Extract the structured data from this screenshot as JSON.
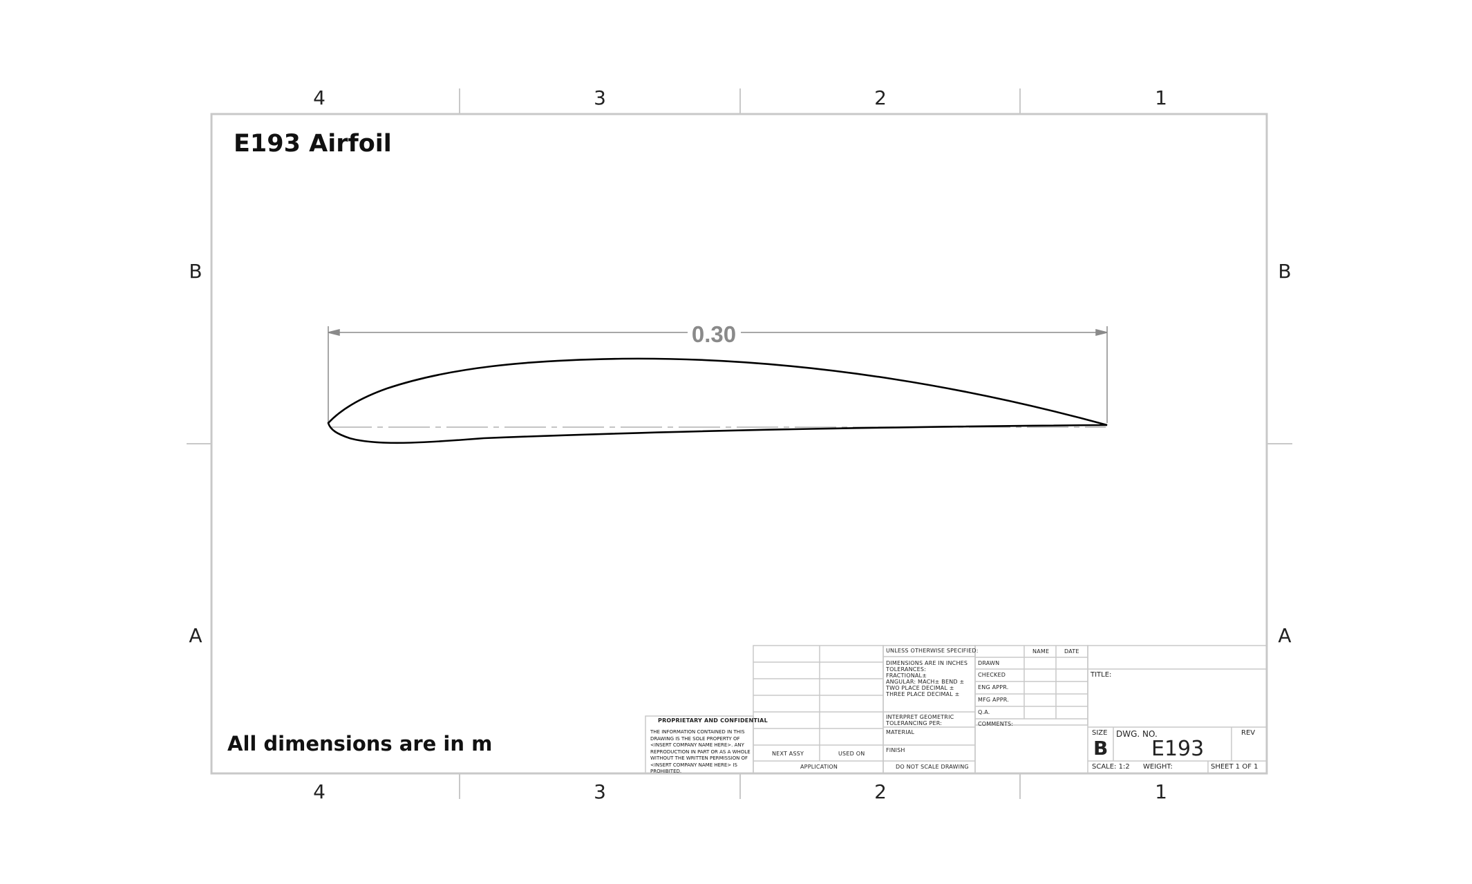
{
  "zones": {
    "columns": [
      "4",
      "3",
      "2",
      "1"
    ],
    "rows": [
      "B",
      "A"
    ]
  },
  "drawing": {
    "title": "E193 Airfoil",
    "dimension": "0.30",
    "note": "All dimensions are in m"
  },
  "title_block": {
    "proprietary_heading": "PROPRIETARY AND CONFIDENTIAL",
    "proprietary_text": "THE INFORMATION CONTAINED IN THIS DRAWING IS THE SOLE PROPERTY OF <INSERT COMPANY NAME HERE>. ANY REPRODUCTION IN PART OR AS A WHOLE WITHOUT THE WRITTEN PERMISSION OF <INSERT COMPANY NAME HERE> IS PROHIBITED.",
    "next_assy": "NEXT ASSY",
    "used_on": "USED ON",
    "application": "APPLICATION",
    "unless": "UNLESS OTHERWISE SPECIFIED:",
    "dims_in_inches": "DIMENSIONS ARE IN INCHES",
    "tolerances": "TOLERANCES:",
    "fractional": "FRACTIONAL±",
    "angular": "ANGULAR: MACH±    BEND ±",
    "two_place": "TWO PLACE DECIMAL    ±",
    "three_place": "THREE PLACE DECIMAL  ±",
    "interpret": "INTERPRET GEOMETRIC",
    "tolerancing": "TOLERANCING PER:",
    "material": "MATERIAL",
    "finish": "FINISH",
    "do_not_scale": "DO NOT SCALE DRAWING",
    "name_header": "NAME",
    "date_header": "DATE",
    "drawn": "DRAWN",
    "checked": "CHECKED",
    "eng_appr": "ENG APPR.",
    "mfg_appr": "MFG APPR.",
    "qa": "Q.A.",
    "comments": "COMMENTS:",
    "title_label": "TITLE:",
    "size_label": "SIZE",
    "size_value": "B",
    "dwg_no_label": "DWG.  NO.",
    "dwg_no_value": "E193",
    "rev_label": "REV",
    "scale": "SCALE: 1:2",
    "weight": "WEIGHT:",
    "sheet": "SHEET 1 OF 1"
  }
}
